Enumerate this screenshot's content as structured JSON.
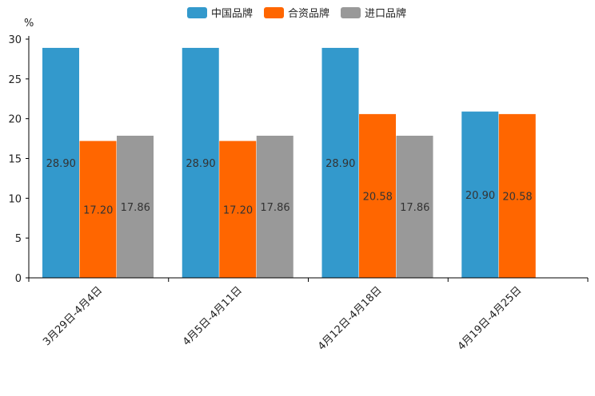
{
  "chart_data": {
    "type": "bar",
    "title": "",
    "xlabel": "",
    "ylabel": "%",
    "ylim": [
      0,
      30
    ],
    "yticks": [
      0,
      5,
      10,
      15,
      20,
      25,
      30
    ],
    "categories": [
      "3月29日-4月4日",
      "4月5日-4月11日",
      "4月12日-4月18日",
      "4月19日-4月25日"
    ],
    "series": [
      {
        "name": "中国品牌",
        "color": "#3399cc",
        "values": [
          28.9,
          28.9,
          28.9,
          20.9
        ],
        "labels": [
          "28.90",
          "28.90",
          "28.90",
          "20.90"
        ]
      },
      {
        "name": "合资品牌",
        "color": "#ff6600",
        "values": [
          17.2,
          17.2,
          20.58,
          20.58
        ],
        "labels": [
          "17.20",
          "17.20",
          "20.58",
          "20.58"
        ]
      },
      {
        "name": "进口品牌",
        "color": "#999999",
        "values": [
          17.86,
          17.86,
          17.86,
          null
        ],
        "labels": [
          "17.86",
          "17.86",
          "17.86",
          null
        ]
      }
    ],
    "legend_position": "top-center",
    "grid": false
  }
}
